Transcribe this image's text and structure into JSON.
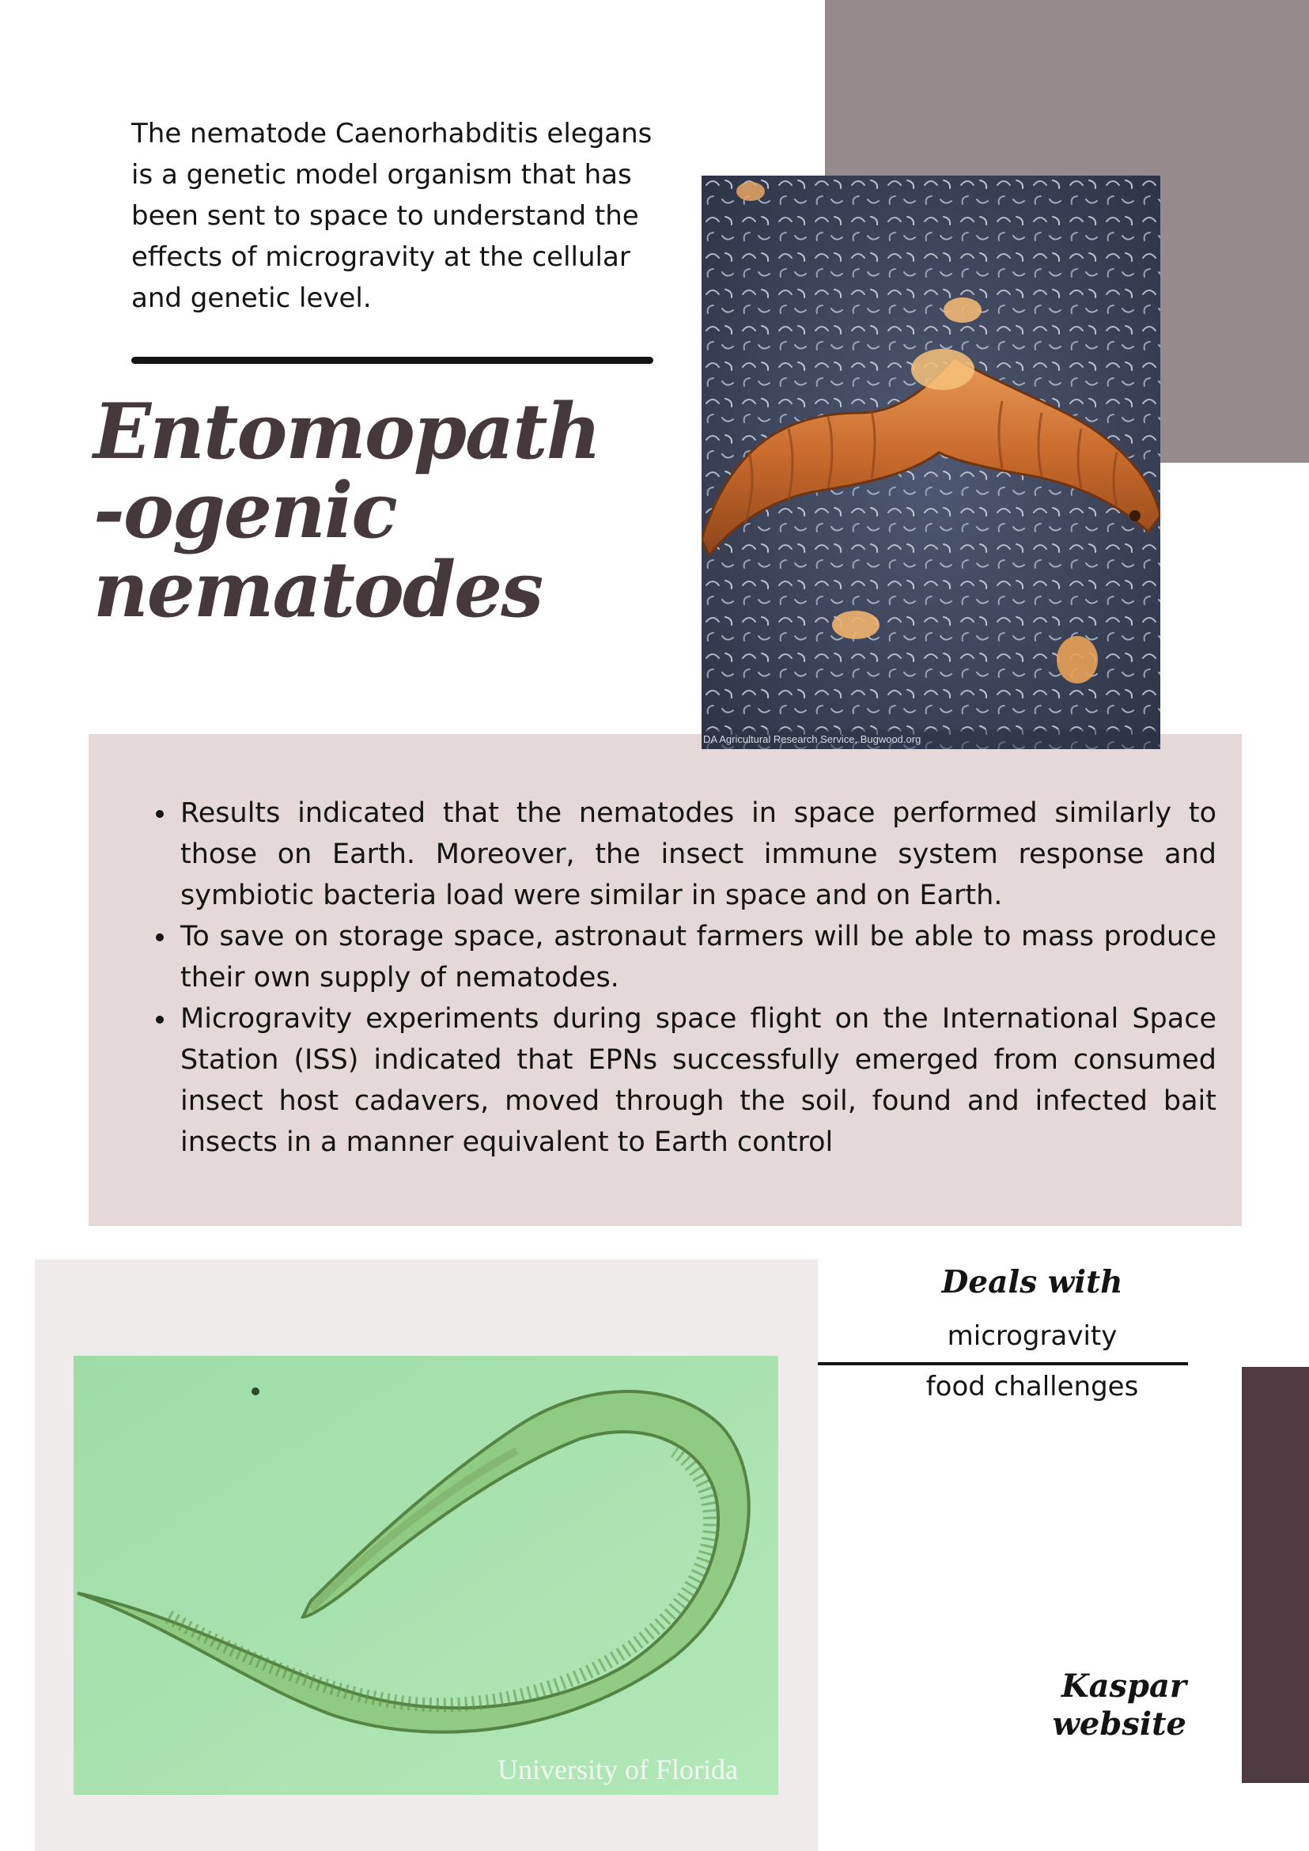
{
  "intro": {
    "text": "The nematode Caenorhabditis elegans is a genetic model organism that has been sent to space to understand the effects of microgravity at the cellular and genetic level."
  },
  "heading": {
    "line1": "Entomopath",
    "line2": "-ogenic",
    "line3": "nematodes"
  },
  "larva_photo": {
    "credit": "DA Agricultural Research Service, Bugwood.org"
  },
  "bullets": [
    "Results indicated that the nematodes in space performed similarly to those on Earth. Moreover, the insect immune system response and symbiotic bacteria load were similar in space and on Earth.",
    "To save on storage space, astronaut farmers will be able to mass produce their own supply of nematodes.",
    "Microgravity experiments during space flight on the International Space Station (ISS) indicated that EPNs successfully emerged from consumed insect host cadavers, moved through the soil, found and infected bait insects in a manner equivalent to Earth control"
  ],
  "worm_photo": {
    "credit": "University of Florida"
  },
  "deals": {
    "heading": "Deals with",
    "item1": "microgravity",
    "item2": "food challenges"
  },
  "kaspar": {
    "line1": "Kaspar",
    "line2": "website"
  },
  "colors": {
    "mauve_block": "#958a8c",
    "pink_panel": "#e4d9d8",
    "light_panel": "#efebea",
    "dark_bar": "#4e3b41",
    "heading_text": "#45393b"
  }
}
